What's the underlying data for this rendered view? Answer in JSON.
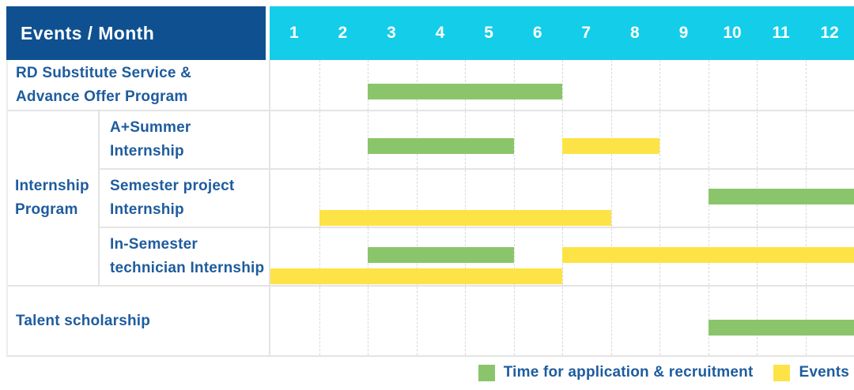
{
  "title": "Events / Month",
  "colors": {
    "header_navy": "#0F5190",
    "header_cyan": "#14CDE9",
    "bar_green": "#8BC56B",
    "bar_yellow": "#FDE345",
    "label_blue": "#1E5C9E",
    "grid_line": "#E4E4E4",
    "grid_dash": "#D9D9D9"
  },
  "chart_data": {
    "type": "bar",
    "subtype": "gantt-schedule",
    "title": "Events / Month",
    "xlabel": "Month",
    "x_ticks": [
      "1",
      "2",
      "3",
      "4",
      "5",
      "6",
      "7",
      "8",
      "9",
      "10",
      "11",
      "12"
    ],
    "x_range": [
      1,
      12
    ],
    "grid": "vertical-dashed",
    "legend_position": "bottom-right",
    "legend": [
      {
        "series": "application",
        "label": "Time for application & recruitment",
        "color": "#8BC56B"
      },
      {
        "series": "events",
        "label": "Events",
        "color": "#FDE345"
      }
    ],
    "rows": [
      {
        "group": "",
        "label": "RD Substitute Service & Advance Offer Program",
        "label_lines": [
          "RD Substitute Service &",
          "Advance Offer Program"
        ],
        "bars": [
          {
            "series": "application",
            "start_month": 3,
            "end_month": 6,
            "lane": 0
          }
        ]
      },
      {
        "group": "Internship Program",
        "label": "A+Summer Internship",
        "label_lines": [
          "A+Summer",
          "Internship"
        ],
        "bars": [
          {
            "series": "application",
            "start_month": 3,
            "end_month": 5,
            "lane": 0
          },
          {
            "series": "events",
            "start_month": 7,
            "end_month": 8,
            "lane": 0
          }
        ]
      },
      {
        "group": "Internship Program",
        "label": "Semester project Internship",
        "label_lines": [
          "Semester project",
          "Internship"
        ],
        "bars": [
          {
            "series": "application",
            "start_month": 10,
            "end_month": 12,
            "lane": 0
          },
          {
            "series": "events",
            "start_month": 2,
            "end_month": 7,
            "lane": 1
          }
        ]
      },
      {
        "group": "Internship Program",
        "label": "In-Semester technician Internship",
        "label_lines": [
          "In-Semester",
          "technician Internship"
        ],
        "bars": [
          {
            "series": "application",
            "start_month": 3,
            "end_month": 5,
            "lane": 0
          },
          {
            "series": "events",
            "start_month": 7,
            "end_month": 12,
            "lane": 0
          },
          {
            "series": "events",
            "start_month": 1,
            "end_month": 6,
            "lane": 1
          }
        ]
      },
      {
        "group": "",
        "label": "Talent scholarship",
        "label_lines": [
          "Talent scholarship"
        ],
        "bars": [
          {
            "series": "application",
            "start_month": 10,
            "end_month": 12,
            "lane": 0
          }
        ]
      }
    ]
  }
}
